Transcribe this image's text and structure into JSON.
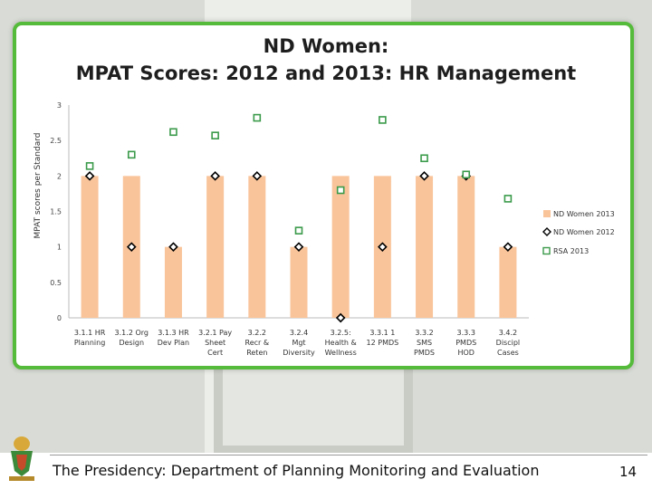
{
  "slide": {
    "title_line1": "ND Women:",
    "title_line2": "MPAT Scores: 2012 and 2013: HR Management",
    "footer": "The Presidency: Department of Planning Monitoring and Evaluation",
    "page_number": "14",
    "colors": {
      "border": "#55bb3a",
      "bar": "#f9c49a",
      "marker_2012": "#000000",
      "marker_rsa": "#3a9a4a"
    }
  },
  "chart_data": {
    "type": "bar",
    "title": "ND Women: MPAT Scores: 2012 and 2013: HR Management",
    "ylabel": "MPAT scores per Standard",
    "ylim": [
      0,
      3
    ],
    "yticks": [
      "0",
      "0.5",
      "1",
      "1.5",
      "2",
      "2.5",
      "3"
    ],
    "categories": [
      [
        "3.1.1 HR",
        "Planning"
      ],
      [
        "3.1.2 Org",
        "Design"
      ],
      [
        "3.1.3 HR",
        "Dev Plan"
      ],
      [
        "3.2.1 Pay",
        "Sheet",
        "Cert"
      ],
      [
        "3.2.2",
        "Recr &",
        "Reten"
      ],
      [
        "3.2.4",
        "Mgt",
        "Diversity"
      ],
      [
        "3.2.5:",
        "Health &",
        "Wellness"
      ],
      [
        "3.3.1 1",
        "12 PMDS"
      ],
      [
        "3.3.2",
        "SMS",
        "PMDS"
      ],
      [
        "3.3.3",
        "PMDS",
        "HOD"
      ],
      [
        "3.4.2",
        "Discipl",
        "Cases"
      ]
    ],
    "series": [
      {
        "name": "ND Women 2013",
        "kind": "bar",
        "values": [
          2,
          2,
          1,
          2,
          2,
          1,
          2,
          2,
          2,
          2,
          1
        ]
      },
      {
        "name": "ND Women 2012",
        "kind": "diamond",
        "values": [
          2,
          1,
          1,
          2,
          2,
          1,
          0,
          1,
          2,
          2,
          1
        ]
      },
      {
        "name": "RSA 2013",
        "kind": "square",
        "values": [
          2.14,
          2.3,
          2.62,
          2.57,
          2.82,
          1.23,
          1.8,
          2.79,
          2.25,
          2.02,
          1.68
        ]
      }
    ],
    "legend_position": "right",
    "grid": false
  }
}
